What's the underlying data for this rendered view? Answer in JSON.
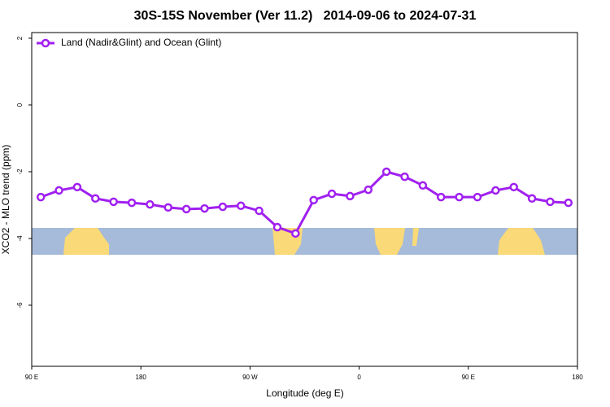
{
  "chart_data": {
    "type": "line",
    "title": "30S-15S November (Ver 11.2)   2014-09-06 to 2024-07-31",
    "x_label": "Longitude (deg E)",
    "y_label": "XCO2 - MLO trend (ppm)",
    "xlim": [
      90,
      540
    ],
    "xticks": [
      {
        "value": 90,
        "label": "90 E"
      },
      180,
      {
        "value": 270,
        "label": "90 W"
      },
      {
        "value": 360,
        "label": "0"
      },
      {
        "value": 450,
        "label": "90 E"
      },
      {
        "value": 540,
        "label": "180"
      }
    ],
    "ylim": [
      -7.83,
      2.17
    ],
    "yticks": [
      2,
      0,
      -2,
      -4,
      -6
    ],
    "legend": "top-left",
    "x": [
      97.5,
      112.5,
      127.5,
      142.5,
      157.5,
      172.5,
      187.5,
      202.5,
      217.5,
      232.5,
      247.5,
      262.5,
      277.5,
      292.5,
      307.5,
      322.5,
      337.5,
      352.5,
      367.5,
      382.5,
      397.5,
      412.5,
      427.5,
      442.5,
      457.5,
      472.5,
      487.5,
      502.5,
      517.5,
      532.5
    ],
    "series": [
      {
        "name": "Land (Nadir&Glint) and Ocean (Glint)",
        "color": "#a020f0",
        "values": [
          -2.76,
          -2.56,
          -2.46,
          -2.8,
          -2.9,
          -2.93,
          -2.98,
          -3.07,
          -3.12,
          -3.1,
          -3.05,
          -3.02,
          -3.17,
          -3.66,
          -3.85,
          -2.85,
          -2.66,
          -2.73,
          -2.54,
          -2.0,
          -2.15,
          -2.41,
          -2.76,
          -2.76,
          -2.76,
          -2.56,
          -2.46,
          -2.8,
          -2.9,
          -2.93
        ]
      }
    ]
  }
}
